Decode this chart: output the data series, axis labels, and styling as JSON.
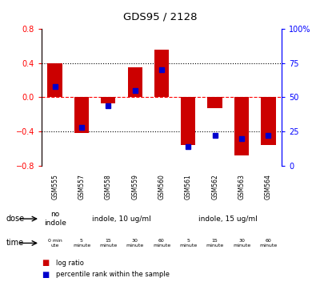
{
  "title": "GDS95 / 2128",
  "samples": [
    "GSM555",
    "GSM557",
    "GSM558",
    "GSM559",
    "GSM560",
    "GSM561",
    "GSM562",
    "GSM563",
    "GSM564"
  ],
  "log_ratio": [
    0.4,
    -0.42,
    -0.07,
    0.35,
    0.55,
    -0.56,
    -0.13,
    -0.68,
    -0.56
  ],
  "percentile_pct": [
    58,
    28,
    44,
    55,
    70,
    14,
    22,
    20,
    22
  ],
  "ylim": [
    -0.8,
    0.8
  ],
  "yticks_left": [
    -0.8,
    -0.4,
    0.0,
    0.4,
    0.8
  ],
  "yticks_right": [
    0,
    25,
    50,
    75,
    100
  ],
  "yticks_right_labels": [
    "0",
    "25",
    "50",
    "75",
    "100%"
  ],
  "bar_color": "#cc0000",
  "dot_color": "#0000cc",
  "bg_color": "#ffffff",
  "dose_configs": [
    [
      0,
      1,
      "no\nindole",
      "#cccccc"
    ],
    [
      1,
      4,
      "indole, 10 ug/ml",
      "#66ee66"
    ],
    [
      5,
      4,
      "indole, 15 ug/ml",
      "#66ee66"
    ]
  ],
  "time_labels": [
    "0 min\nute",
    "5\nminute",
    "15\nminute",
    "30\nminute",
    "60\nminute",
    "5\nminute",
    "15\nminute",
    "30\nminute",
    "60\nminute"
  ],
  "time_colors": [
    "#ffffff",
    "#dd88dd",
    "#dd88dd",
    "#dd88dd",
    "#dd88dd",
    "#dd88dd",
    "#dd88dd",
    "#dd88dd",
    "#dd88dd"
  ],
  "dose_label": "dose",
  "time_label": "time",
  "legend_log": "log ratio",
  "legend_pct": "percentile rank within the sample",
  "header_color": "#cccccc"
}
